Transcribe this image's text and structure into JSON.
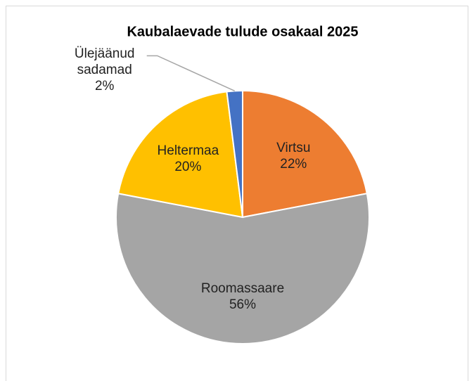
{
  "chart_data": {
    "type": "pie",
    "title": "Kaubalaevade tulude osakaal 2025",
    "categories": [
      "Virtsu",
      "Roomassaare",
      "Heltermaa",
      "Ülejäänud sadamad"
    ],
    "values": [
      22,
      56,
      20,
      2
    ],
    "value_labels": [
      "22%",
      "56%",
      "20%",
      "2%"
    ],
    "colors": [
      "#ed7d31",
      "#a5a5a5",
      "#ffc000",
      "#4472c4"
    ]
  }
}
